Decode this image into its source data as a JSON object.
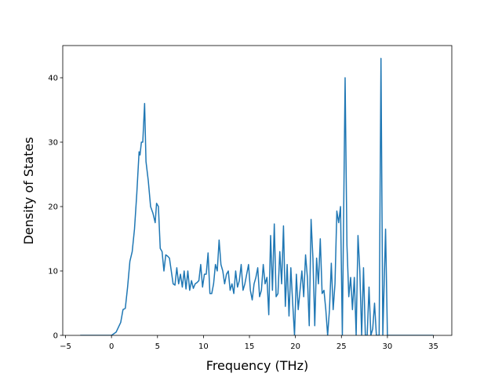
{
  "chart_data": {
    "type": "line",
    "xlabel": "Frequency (THz)",
    "ylabel": "Density of States",
    "xlim": [
      -5.3,
      37
    ],
    "ylim": [
      0,
      45
    ],
    "xticks": [
      {
        "value": -5,
        "label": "−5"
      },
      0,
      5,
      10,
      15,
      20,
      25,
      30,
      35
    ],
    "yticks": [
      0,
      10,
      20,
      30,
      40
    ],
    "color": "#1f77b4",
    "x": [
      -3.4,
      -2,
      -1,
      0,
      0.5,
      1,
      1.25,
      1.5,
      1.75,
      2,
      2.25,
      2.5,
      2.75,
      3,
      3.1,
      3.25,
      3.4,
      3.6,
      3.75,
      4,
      4.25,
      4.5,
      4.75,
      4.9,
      5.1,
      5.3,
      5.5,
      5.7,
      5.9,
      6.1,
      6.3,
      6.5,
      6.7,
      6.9,
      7.1,
      7.3,
      7.5,
      7.7,
      7.9,
      8.1,
      8.3,
      8.5,
      8.7,
      8.9,
      9.1,
      9.3,
      9.5,
      9.7,
      9.9,
      10.1,
      10.3,
      10.5,
      10.7,
      10.9,
      11.1,
      11.3,
      11.5,
      11.7,
      11.9,
      12.1,
      12.3,
      12.5,
      12.7,
      12.9,
      13.1,
      13.3,
      13.5,
      13.7,
      13.9,
      14.1,
      14.3,
      14.5,
      14.7,
      14.9,
      15.1,
      15.3,
      15.5,
      15.7,
      15.9,
      16.1,
      16.3,
      16.5,
      16.7,
      16.9,
      17.1,
      17.3,
      17.5,
      17.7,
      17.9,
      18.1,
      18.3,
      18.5,
      18.7,
      18.9,
      19.1,
      19.3,
      19.5,
      19.7,
      19.9,
      20.1,
      20.3,
      20.5,
      20.7,
      20.9,
      21.1,
      21.3,
      21.5,
      21.7,
      21.9,
      22.1,
      22.3,
      22.5,
      22.7,
      22.9,
      23.1,
      23.3,
      23.5,
      23.7,
      23.9,
      24.1,
      24.3,
      24.5,
      24.7,
      24.9,
      25.1,
      25.4,
      25.6,
      25.8,
      26.0,
      26.2,
      26.4,
      26.6,
      26.8,
      27.0,
      27.2,
      27.4,
      27.6,
      27.8,
      28.0,
      28.2,
      28.4,
      28.6,
      28.8,
      29.1,
      29.3,
      29.5,
      29.8,
      30.0,
      35
    ],
    "values": [
      0,
      0,
      0,
      0,
      0.5,
      2,
      4,
      4.2,
      7.5,
      11.5,
      13,
      16.5,
      22,
      28.5,
      28,
      30,
      30,
      36,
      27,
      24,
      20,
      19,
      17.5,
      20.5,
      20,
      13.5,
      13,
      10,
      12.5,
      12.3,
      12,
      10,
      8,
      7.8,
      10.5,
      8,
      9.5,
      7.5,
      10,
      7.2,
      10,
      7,
      8.5,
      7.3,
      8,
      8.2,
      8.5,
      11,
      7.5,
      9.5,
      9.5,
      12.8,
      6.5,
      6.5,
      8,
      11,
      10,
      14.8,
      11,
      10,
      8,
      9.5,
      10,
      7,
      8,
      6.5,
      10,
      7.5,
      8.5,
      11,
      7,
      8,
      9.5,
      11,
      7,
      5.5,
      8,
      9,
      10.5,
      6,
      7,
      11,
      8,
      9,
      3.2,
      15.5,
      7,
      17.3,
      6,
      6.5,
      13,
      8,
      17,
      4.5,
      11,
      3,
      10.5,
      5,
      0,
      9.5,
      4,
      7,
      10,
      6,
      12.5,
      9,
      1.5,
      18,
      12,
      1.5,
      12,
      8,
      15,
      6.5,
      7,
      4,
      0,
      4,
      11.2,
      4,
      8,
      19.3,
      17.5,
      20,
      0,
      40,
      14,
      6,
      9,
      4,
      9,
      0,
      15.5,
      10,
      0,
      10.5,
      0,
      0,
      7.5,
      0,
      1,
      5,
      0,
      0,
      43,
      0,
      16.5,
      0,
      0
    ]
  }
}
